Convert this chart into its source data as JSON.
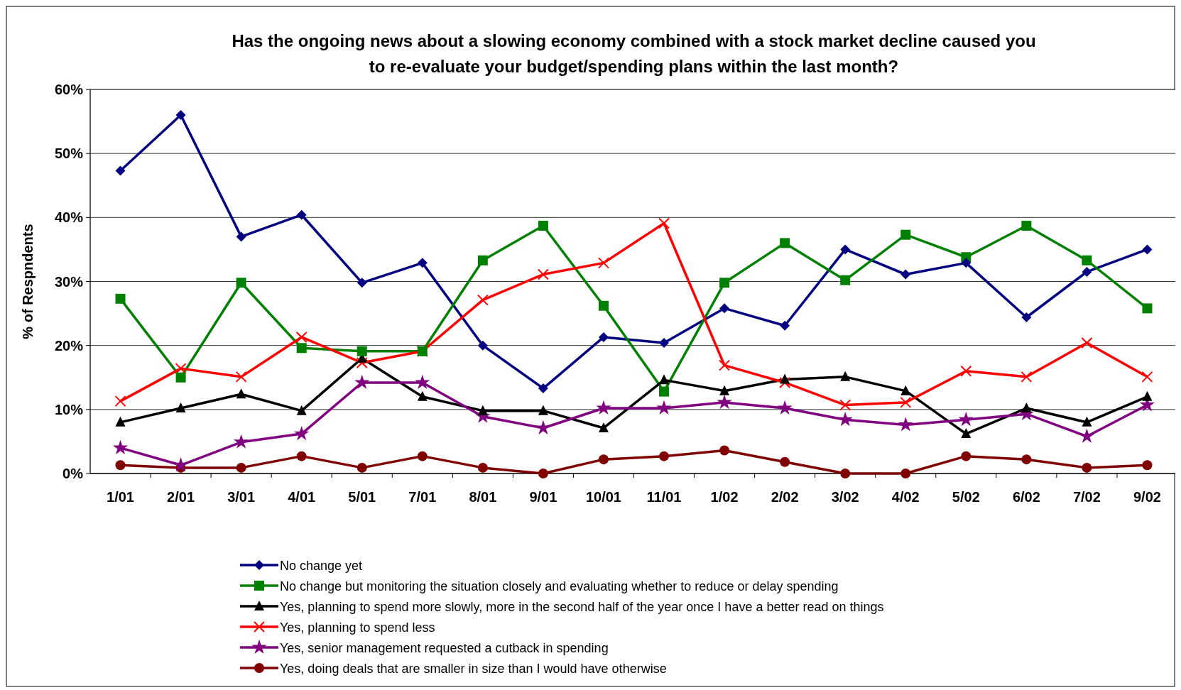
{
  "chart_data": {
    "type": "line",
    "title": "Has the ongoing news about a slowing economy combined with a stock market decline caused you\nto re-evaluate your budget/spending plans within the last month?",
    "ylabel": "% of Respndents",
    "categories": [
      "1/01",
      "2/01",
      "3/01",
      "4/01",
      "5/01",
      "7/01",
      "8/01",
      "9/01",
      "10/01",
      "11/01",
      "1/02",
      "2/02",
      "3/02",
      "4/02",
      "5/02",
      "6/02",
      "7/02",
      "9/02"
    ],
    "ylim": [
      0,
      60
    ],
    "yticks": [
      {
        "value": 0,
        "label": "0%"
      },
      {
        "value": 10,
        "label": "10%"
      },
      {
        "value": 20,
        "label": "20%"
      },
      {
        "value": 30,
        "label": "30%"
      },
      {
        "value": 40,
        "label": "40%"
      },
      {
        "value": 50,
        "label": "50%"
      },
      {
        "value": 60,
        "label": "60%"
      }
    ],
    "grid": "y",
    "legend": "bottom",
    "line_style": "solid",
    "series": [
      {
        "name": "No change yet",
        "color": "#000080",
        "marker": "diamond",
        "values": [
          47.3,
          56,
          37,
          40.4,
          29.8,
          32.9,
          20,
          13.3,
          21.3,
          20.4,
          25.8,
          23.1,
          35,
          31.1,
          32.9,
          24.4,
          31.5,
          35
        ]
      },
      {
        "name": "No change but monitoring the situation closely and evaluating whether to reduce or delay spending",
        "color": "#008000",
        "marker": "square",
        "values": [
          27.3,
          15,
          29.8,
          19.6,
          19.1,
          19.1,
          33.3,
          38.7,
          26.2,
          12.8,
          29.8,
          36,
          30.2,
          37.3,
          33.8,
          38.7,
          33.3,
          25.8
        ]
      },
      {
        "name": "Yes, planning to spend more slowly, more in the second half of the year once I have a better read on things",
        "color": "#000000",
        "marker": "triangle",
        "values": [
          8,
          10.2,
          12.4,
          9.8,
          18,
          12,
          9.8,
          9.8,
          7.1,
          14.6,
          12.9,
          14.7,
          15.1,
          12.9,
          6.2,
          10.2,
          8,
          12
        ]
      },
      {
        "name": "Yes, planning to spend less",
        "color": "#ff0000",
        "marker": "cross",
        "values": [
          11.3,
          16.4,
          15.1,
          21.3,
          17.3,
          19.1,
          27.1,
          31.1,
          32.9,
          39.1,
          16.9,
          14.2,
          10.7,
          11.1,
          16,
          15.1,
          20.4,
          15.1
        ]
      },
      {
        "name": "Yes, senior management requested a cutback in spending",
        "color": "#800080",
        "marker": "star",
        "values": [
          4,
          1.3,
          4.9,
          6.2,
          14.2,
          14.2,
          8.9,
          7.1,
          10.2,
          10.2,
          11.1,
          10.2,
          8.4,
          7.6,
          8.4,
          9.3,
          5.8,
          10.7
        ]
      },
      {
        "name": "Yes, doing deals that are smaller in size than I would have otherwise",
        "color": "#800000",
        "marker": "circle",
        "values": [
          1.3,
          0.9,
          0.9,
          2.7,
          0.9,
          2.7,
          0.9,
          0,
          2.2,
          2.7,
          3.6,
          1.8,
          0,
          0,
          2.7,
          2.2,
          0.9,
          1.3
        ]
      }
    ]
  }
}
